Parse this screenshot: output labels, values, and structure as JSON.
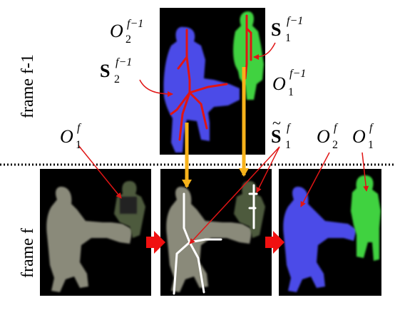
{
  "row_labels": {
    "top": "frame f-1",
    "bottom": "frame f"
  },
  "labels": {
    "O2_prev": {
      "base": "O",
      "sub": "2",
      "sup": "f−1"
    },
    "S2_prev": {
      "base": "S",
      "sub": "2",
      "sup": "f−1"
    },
    "S1_prev": {
      "base": "S",
      "sub": "1",
      "sup": "f−1"
    },
    "O1_prev": {
      "base": "O",
      "sub": "1",
      "sup": "f−1"
    },
    "O1_cur_left": {
      "base": "O",
      "sub": "1",
      "sup": "f"
    },
    "S1_tilde": {
      "base": "S",
      "sub": "1",
      "sup": "f"
    },
    "O2_cur": {
      "base": "O",
      "sub": "2",
      "sup": "f"
    },
    "O1_cur_right": {
      "base": "O",
      "sub": "1",
      "sup": "f"
    }
  },
  "colors": {
    "object2": "#4b4be8",
    "object1": "#3fd23f",
    "skeleton_prev": "#e01515",
    "skeleton_cur": "#ffffff",
    "track_arrow": "#f7b21a",
    "step_arrow": "#f01010",
    "background": "#000000"
  }
}
